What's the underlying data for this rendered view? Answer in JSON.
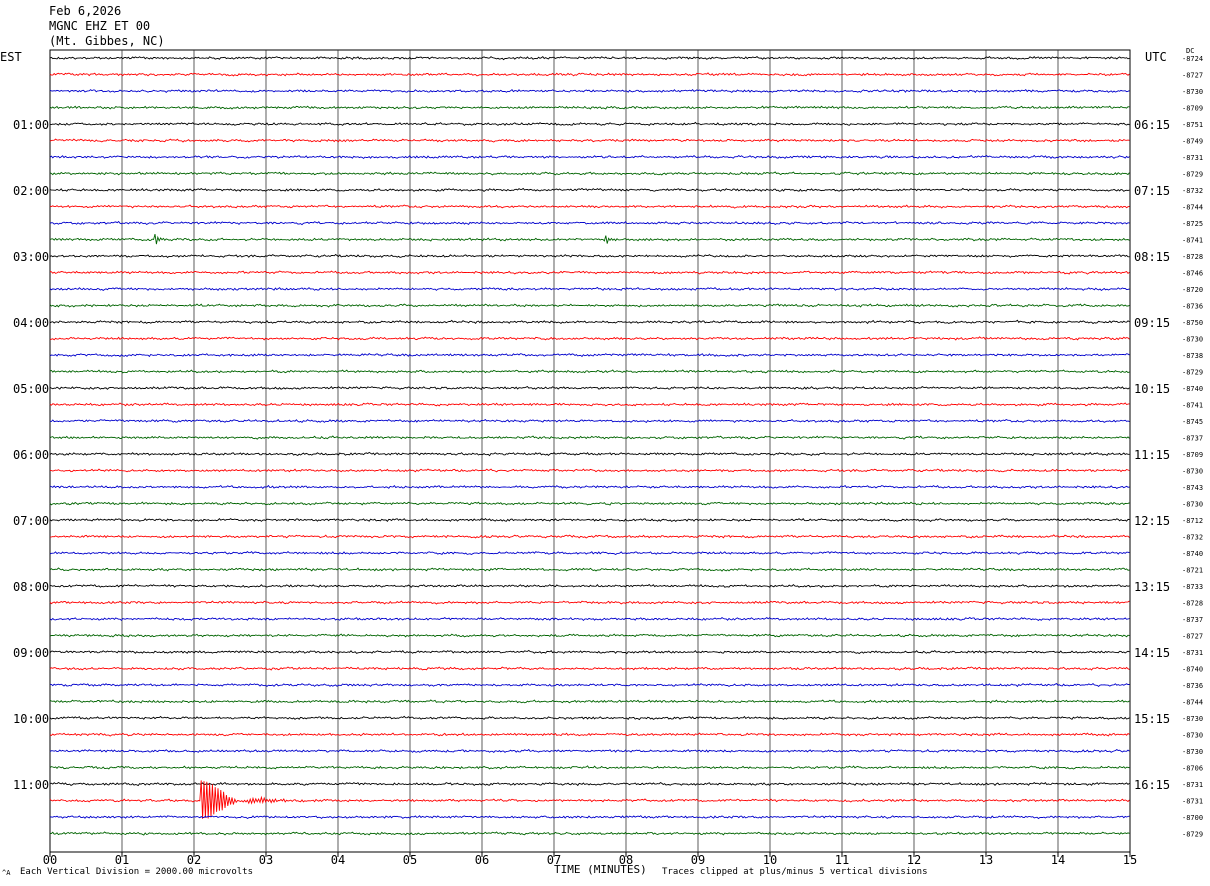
{
  "header": {
    "date": "Feb 6,2026",
    "station": "MGNC EHZ ET 00",
    "location": "(Mt. Gibbes, NC)"
  },
  "left_tz": "EST",
  "right_tz": "UTC",
  "dc_label": "DC",
  "footer": {
    "scale": "Each Vertical Division = 2000.00 microvolts",
    "xlabel": "TIME (MINUTES)",
    "clip": "Traces clipped at plus/minus 5 vertical divisions",
    "corner": "^A"
  },
  "colors": {
    "trace_cycle": [
      "#000000",
      "#ff0000",
      "#0000cc",
      "#006400"
    ],
    "grid": "#000000"
  },
  "chart_data": {
    "type": "line",
    "title": "",
    "xlabel": "TIME (MINUTES)",
    "xlim": [
      0,
      15
    ],
    "x_ticks": [
      "00",
      "01",
      "02",
      "03",
      "04",
      "05",
      "06",
      "07",
      "08",
      "09",
      "10",
      "11",
      "12",
      "13",
      "14",
      "15"
    ],
    "rows_per_hour": 4,
    "left_hour_labels": [
      "01:00",
      "02:00",
      "03:00",
      "04:00",
      "05:00",
      "06:00",
      "07:00",
      "08:00",
      "09:00",
      "10:00",
      "11:00"
    ],
    "right_hour_labels": [
      "06:15",
      "07:15",
      "08:15",
      "09:15",
      "10:15",
      "11:15",
      "12:15",
      "13:15",
      "14:15",
      "15:15",
      "16:15"
    ],
    "dc_offsets": [
      "-8724",
      "-8727",
      "-8730",
      "-8709",
      "-8751",
      "-8749",
      "-8731",
      "-8729",
      "-8732",
      "-8744",
      "-8725",
      "-8741",
      "-8728",
      "-8746",
      "-8720",
      "-8736",
      "-8750",
      "-8730",
      "-8738",
      "-8729",
      "-8740",
      "-8741",
      "-8745",
      "-8737",
      "-8709",
      "-8730",
      "-8743",
      "-8730",
      "-8712",
      "-8732",
      "-8740",
      "-8721",
      "-8733",
      "-8728",
      "-8737",
      "-8727",
      "-8731",
      "-8740",
      "-8736",
      "-8744",
      "-8730",
      "-8730",
      "-8730",
      "-8706",
      "-8731",
      "-8731",
      "-8700",
      "-8729"
    ],
    "events": [
      {
        "row": 45,
        "minute": 2.1,
        "amplitude": "large"
      },
      {
        "row": 11,
        "minute": 1.45,
        "amplitude": "small"
      },
      {
        "row": 11,
        "minute": 7.7,
        "amplitude": "small"
      }
    ]
  }
}
